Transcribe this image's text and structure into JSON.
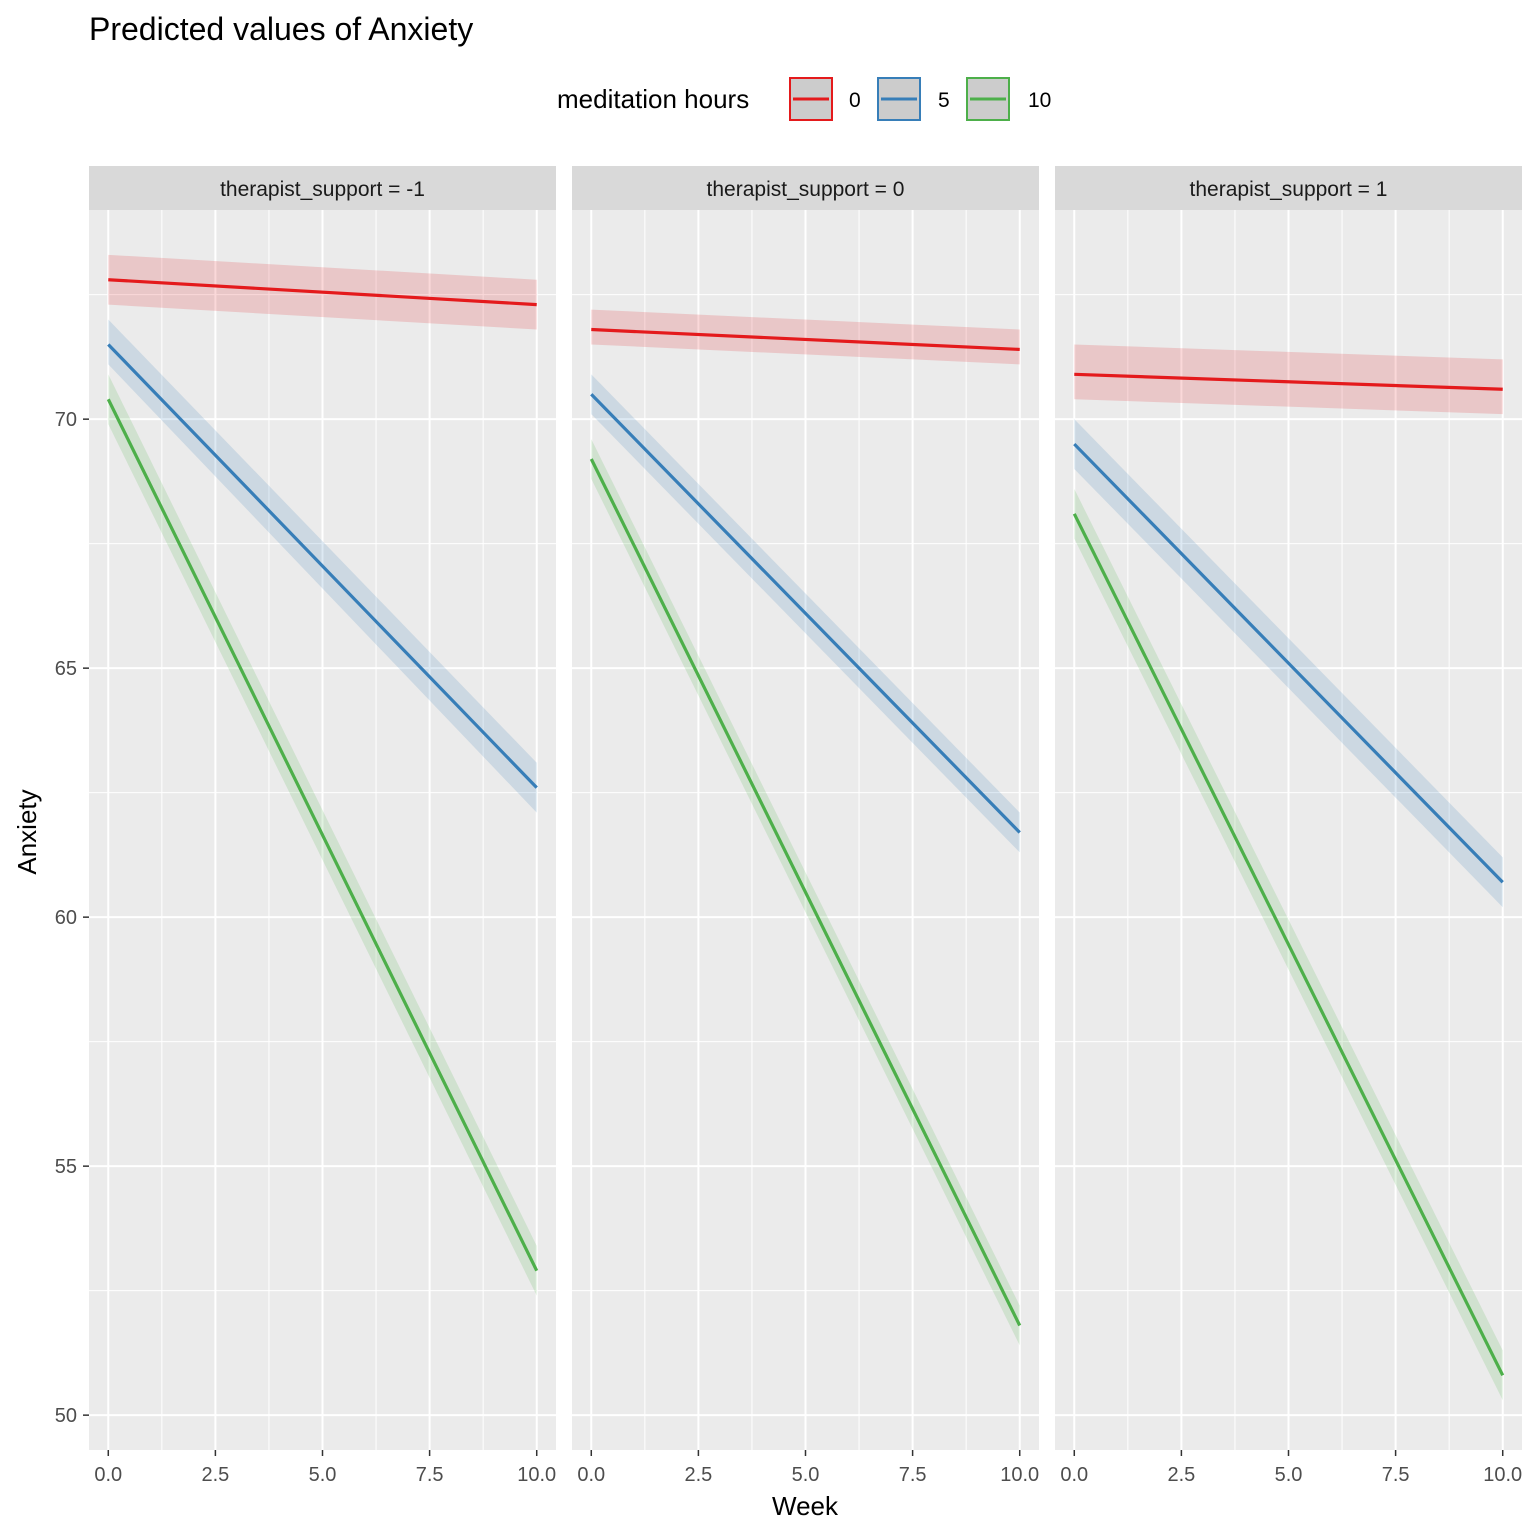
{
  "chart_data": {
    "type": "line",
    "title": "Predicted values of Anxiety",
    "xlabel": "Week",
    "ylabel": "Anxiety",
    "xlim": [
      -0.45,
      10.45
    ],
    "ylim": [
      49.3,
      74.2
    ],
    "x_ticks": [
      0,
      2.5,
      5,
      7.5,
      10
    ],
    "x_tick_labels": [
      "0.0",
      "2.5",
      "5.0",
      "7.5",
      "10.0"
    ],
    "y_ticks": [
      50,
      55,
      60,
      65,
      70
    ],
    "y_tick_labels": [
      "50",
      "55",
      "60",
      "65",
      "70"
    ],
    "grid": true,
    "legend": {
      "title": "meditation hours",
      "position": "top",
      "entries": [
        {
          "label": "0",
          "color": "#e41a1c"
        },
        {
          "label": "5",
          "color": "#377eb8"
        },
        {
          "label": "10",
          "color": "#4daf4a"
        }
      ]
    },
    "facets": [
      {
        "strip": "therapist_support = -1",
        "series": [
          {
            "name": "0",
            "color": "#e41a1c",
            "x": [
              0,
              10
            ],
            "y": [
              72.8,
              72.3
            ],
            "lower": [
              72.3,
              71.8
            ],
            "upper": [
              73.3,
              72.8
            ]
          },
          {
            "name": "5",
            "color": "#377eb8",
            "x": [
              0,
              10
            ],
            "y": [
              71.5,
              62.6
            ],
            "lower": [
              71.1,
              62.1
            ],
            "upper": [
              72.0,
              63.1
            ]
          },
          {
            "name": "10",
            "color": "#4daf4a",
            "x": [
              0,
              10
            ],
            "y": [
              70.4,
              52.9
            ],
            "lower": [
              69.9,
              52.4
            ],
            "upper": [
              70.9,
              53.4
            ]
          }
        ]
      },
      {
        "strip": "therapist_support = 0",
        "series": [
          {
            "name": "0",
            "color": "#e41a1c",
            "x": [
              0,
              10
            ],
            "y": [
              71.8,
              71.4
            ],
            "lower": [
              71.5,
              71.1
            ],
            "upper": [
              72.2,
              71.8
            ]
          },
          {
            "name": "5",
            "color": "#377eb8",
            "x": [
              0,
              10
            ],
            "y": [
              70.5,
              61.7
            ],
            "lower": [
              70.1,
              61.3
            ],
            "upper": [
              70.9,
              62.1
            ]
          },
          {
            "name": "10",
            "color": "#4daf4a",
            "x": [
              0,
              10
            ],
            "y": [
              69.2,
              51.8
            ],
            "lower": [
              68.8,
              51.4
            ],
            "upper": [
              69.6,
              52.2
            ]
          }
        ]
      },
      {
        "strip": "therapist_support = 1",
        "series": [
          {
            "name": "0",
            "color": "#e41a1c",
            "x": [
              0,
              10
            ],
            "y": [
              70.9,
              70.6
            ],
            "lower": [
              70.4,
              70.1
            ],
            "upper": [
              71.5,
              71.2
            ]
          },
          {
            "name": "5",
            "color": "#377eb8",
            "x": [
              0,
              10
            ],
            "y": [
              69.5,
              60.7
            ],
            "lower": [
              69.0,
              60.2
            ],
            "upper": [
              70.0,
              61.2
            ]
          },
          {
            "name": "10",
            "color": "#4daf4a",
            "x": [
              0,
              10
            ],
            "y": [
              68.1,
              50.8
            ],
            "lower": [
              67.6,
              50.3
            ],
            "upper": [
              68.6,
              51.3
            ]
          }
        ]
      }
    ]
  }
}
